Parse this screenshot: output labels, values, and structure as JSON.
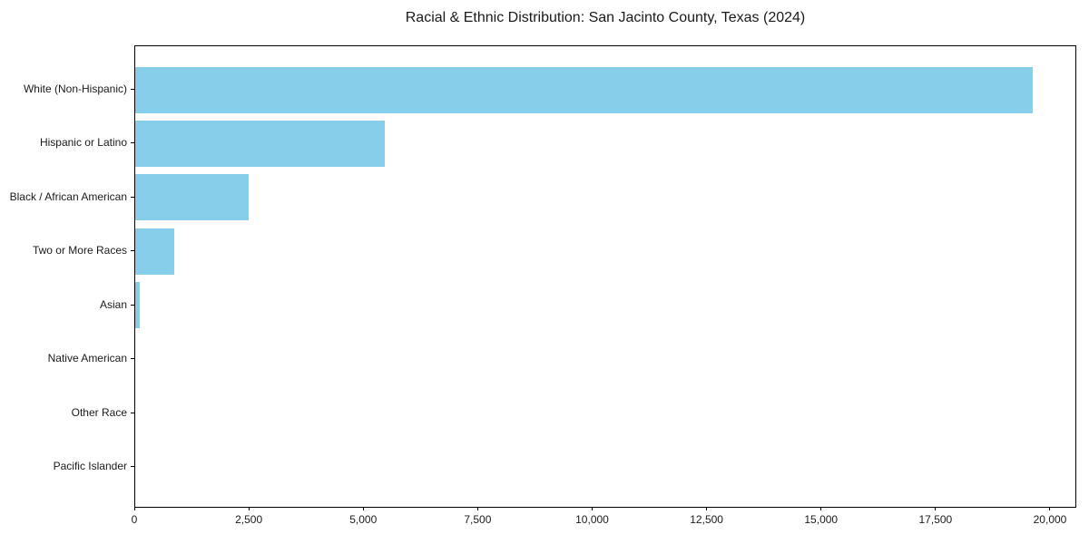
{
  "chart_data": {
    "type": "bar",
    "orientation": "horizontal",
    "title": "Racial & Ethnic Distribution: San Jacinto County, Texas (2024)",
    "categories": [
      "White (Non-Hispanic)",
      "Hispanic or Latino",
      "Black / African American",
      "Two or More Races",
      "Asian",
      "Native American",
      "Other Race",
      "Pacific Islander"
    ],
    "values": [
      19600,
      5450,
      2480,
      850,
      90,
      0,
      0,
      0
    ],
    "xlabel": "",
    "ylabel": "",
    "xlim": [
      0,
      20575
    ],
    "xticks": [
      0,
      2500,
      5000,
      7500,
      10000,
      12500,
      15000,
      17500,
      20000
    ],
    "xtick_labels": [
      "0",
      "2,500",
      "5,000",
      "7,500",
      "10,000",
      "12,500",
      "15,000",
      "17,500",
      "20,000"
    ],
    "bar_color": "#87CEEB",
    "axis_color": "#000000",
    "background_color": "#ffffff",
    "grid": false,
    "legend": null
  }
}
